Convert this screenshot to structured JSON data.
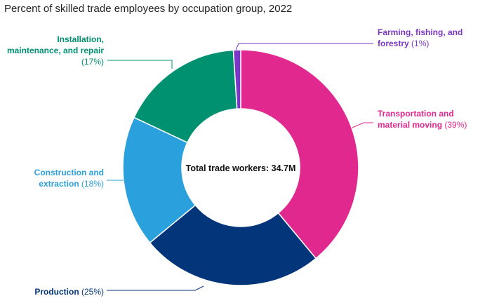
{
  "chart_data": {
    "type": "pie",
    "title": "Percent of skilled trade employees by occupation group, 2022",
    "center_label": "Total trade workers: 34.7M",
    "slices": [
      {
        "name": "Transportation and material moving",
        "lines": [
          "Transportation and",
          "material moving"
        ],
        "pct_label": "(39%)",
        "value": 39,
        "color": "#e0288f"
      },
      {
        "name": "Production",
        "lines": [
          "Production"
        ],
        "pct_label": "(25%)",
        "value": 25,
        "color": "#03357a"
      },
      {
        "name": "Construction and extraction",
        "lines": [
          "Construction and",
          "extraction"
        ],
        "pct_label": "(18%)",
        "value": 18,
        "color": "#2aa0dd"
      },
      {
        "name": "Installation, maintenance, and repair",
        "lines": [
          "Installation,",
          "maintenance, and repair"
        ],
        "pct_label": "(17%)",
        "value": 17,
        "color": "#009170"
      },
      {
        "name": "Farming, fishing, and forestry",
        "lines": [
          "Farming, fishing, and",
          "forestry"
        ],
        "pct_label": "(1%)",
        "value": 1,
        "color": "#7a36c4"
      }
    ]
  }
}
